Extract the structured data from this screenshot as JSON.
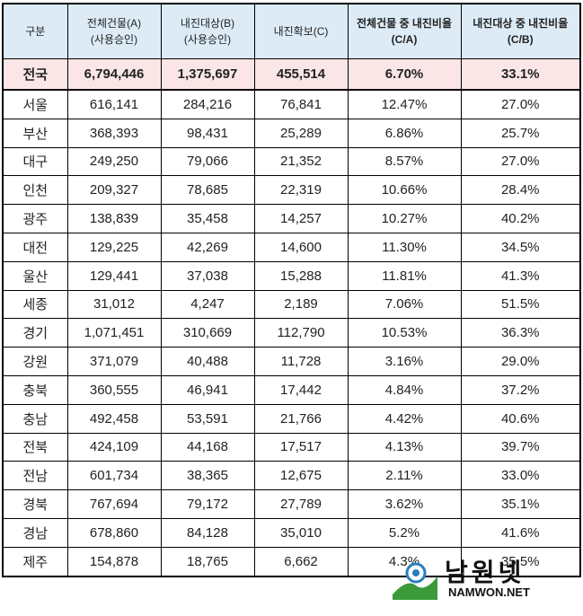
{
  "header": {
    "region": "구분",
    "col_a": "전체건물(A)",
    "col_a_sub": "(사용승인)",
    "col_b": "내진대상(B)",
    "col_b_sub": "(사용승인)",
    "col_c": "내진확보(C)",
    "col_d": "전체건물 중 내진비율",
    "col_d_sub": "(C/A)",
    "col_e": "내진대상 중 내진비율",
    "col_e_sub": "(C/B)"
  },
  "total": {
    "region": "전국",
    "a": "6,794,446",
    "b": "1,375,697",
    "c": "455,514",
    "d": "6.70%",
    "e": "33.1%"
  },
  "rows": [
    {
      "region": "서울",
      "a": "616,141",
      "b": "284,216",
      "c": "76,841",
      "d": "12.47%",
      "e": "27.0%"
    },
    {
      "region": "부산",
      "a": "368,393",
      "b": "98,431",
      "c": "25,289",
      "d": "6.86%",
      "e": "25.7%"
    },
    {
      "region": "대구",
      "a": "249,250",
      "b": "79,066",
      "c": "21,352",
      "d": "8.57%",
      "e": "27.0%"
    },
    {
      "region": "인천",
      "a": "209,327",
      "b": "78,685",
      "c": "22,319",
      "d": "10.66%",
      "e": "28.4%"
    },
    {
      "region": "광주",
      "a": "138,839",
      "b": "35,458",
      "c": "14,257",
      "d": "10.27%",
      "e": "40.2%"
    },
    {
      "region": "대전",
      "a": "129,225",
      "b": "42,269",
      "c": "14,600",
      "d": "11.30%",
      "e": "34.5%"
    },
    {
      "region": "울산",
      "a": "129,441",
      "b": "37,038",
      "c": "15,288",
      "d": "11.81%",
      "e": "41.3%"
    },
    {
      "region": "세종",
      "a": "31,012",
      "b": "4,247",
      "c": "2,189",
      "d": "7.06%",
      "e": "51.5%"
    },
    {
      "region": "경기",
      "a": "1,071,451",
      "b": "310,669",
      "c": "112,790",
      "d": "10.53%",
      "e": "36.3%"
    },
    {
      "region": "강원",
      "a": "371,079",
      "b": "40,488",
      "c": "11,728",
      "d": "3.16%",
      "e": "29.0%"
    },
    {
      "region": "충북",
      "a": "360,555",
      "b": "46,941",
      "c": "17,442",
      "d": "4.84%",
      "e": "37.2%"
    },
    {
      "region": "충남",
      "a": "492,458",
      "b": "53,591",
      "c": "21,766",
      "d": "4.42%",
      "e": "40.6%"
    },
    {
      "region": "전북",
      "a": "424,109",
      "b": "44,168",
      "c": "17,517",
      "d": "4.13%",
      "e": "39.7%"
    },
    {
      "region": "전남",
      "a": "601,734",
      "b": "38,365",
      "c": "12,675",
      "d": "2.11%",
      "e": "33.0%"
    },
    {
      "region": "경북",
      "a": "767,694",
      "b": "79,172",
      "c": "27,789",
      "d": "3.62%",
      "e": "35.1%"
    },
    {
      "region": "경남",
      "a": "678,860",
      "b": "84,128",
      "c": "35,010",
      "d": "5.2%",
      "e": "41.6%"
    },
    {
      "region": "제주",
      "a": "154,878",
      "b": "18,765",
      "c": "6,662",
      "d": "4.3%",
      "e": "35.5%"
    }
  ],
  "watermark": {
    "title": "남원넷",
    "url": "NAMWON.NET",
    "colors": {
      "green": "#3a9a3a",
      "blue": "#2a7fc0"
    }
  }
}
